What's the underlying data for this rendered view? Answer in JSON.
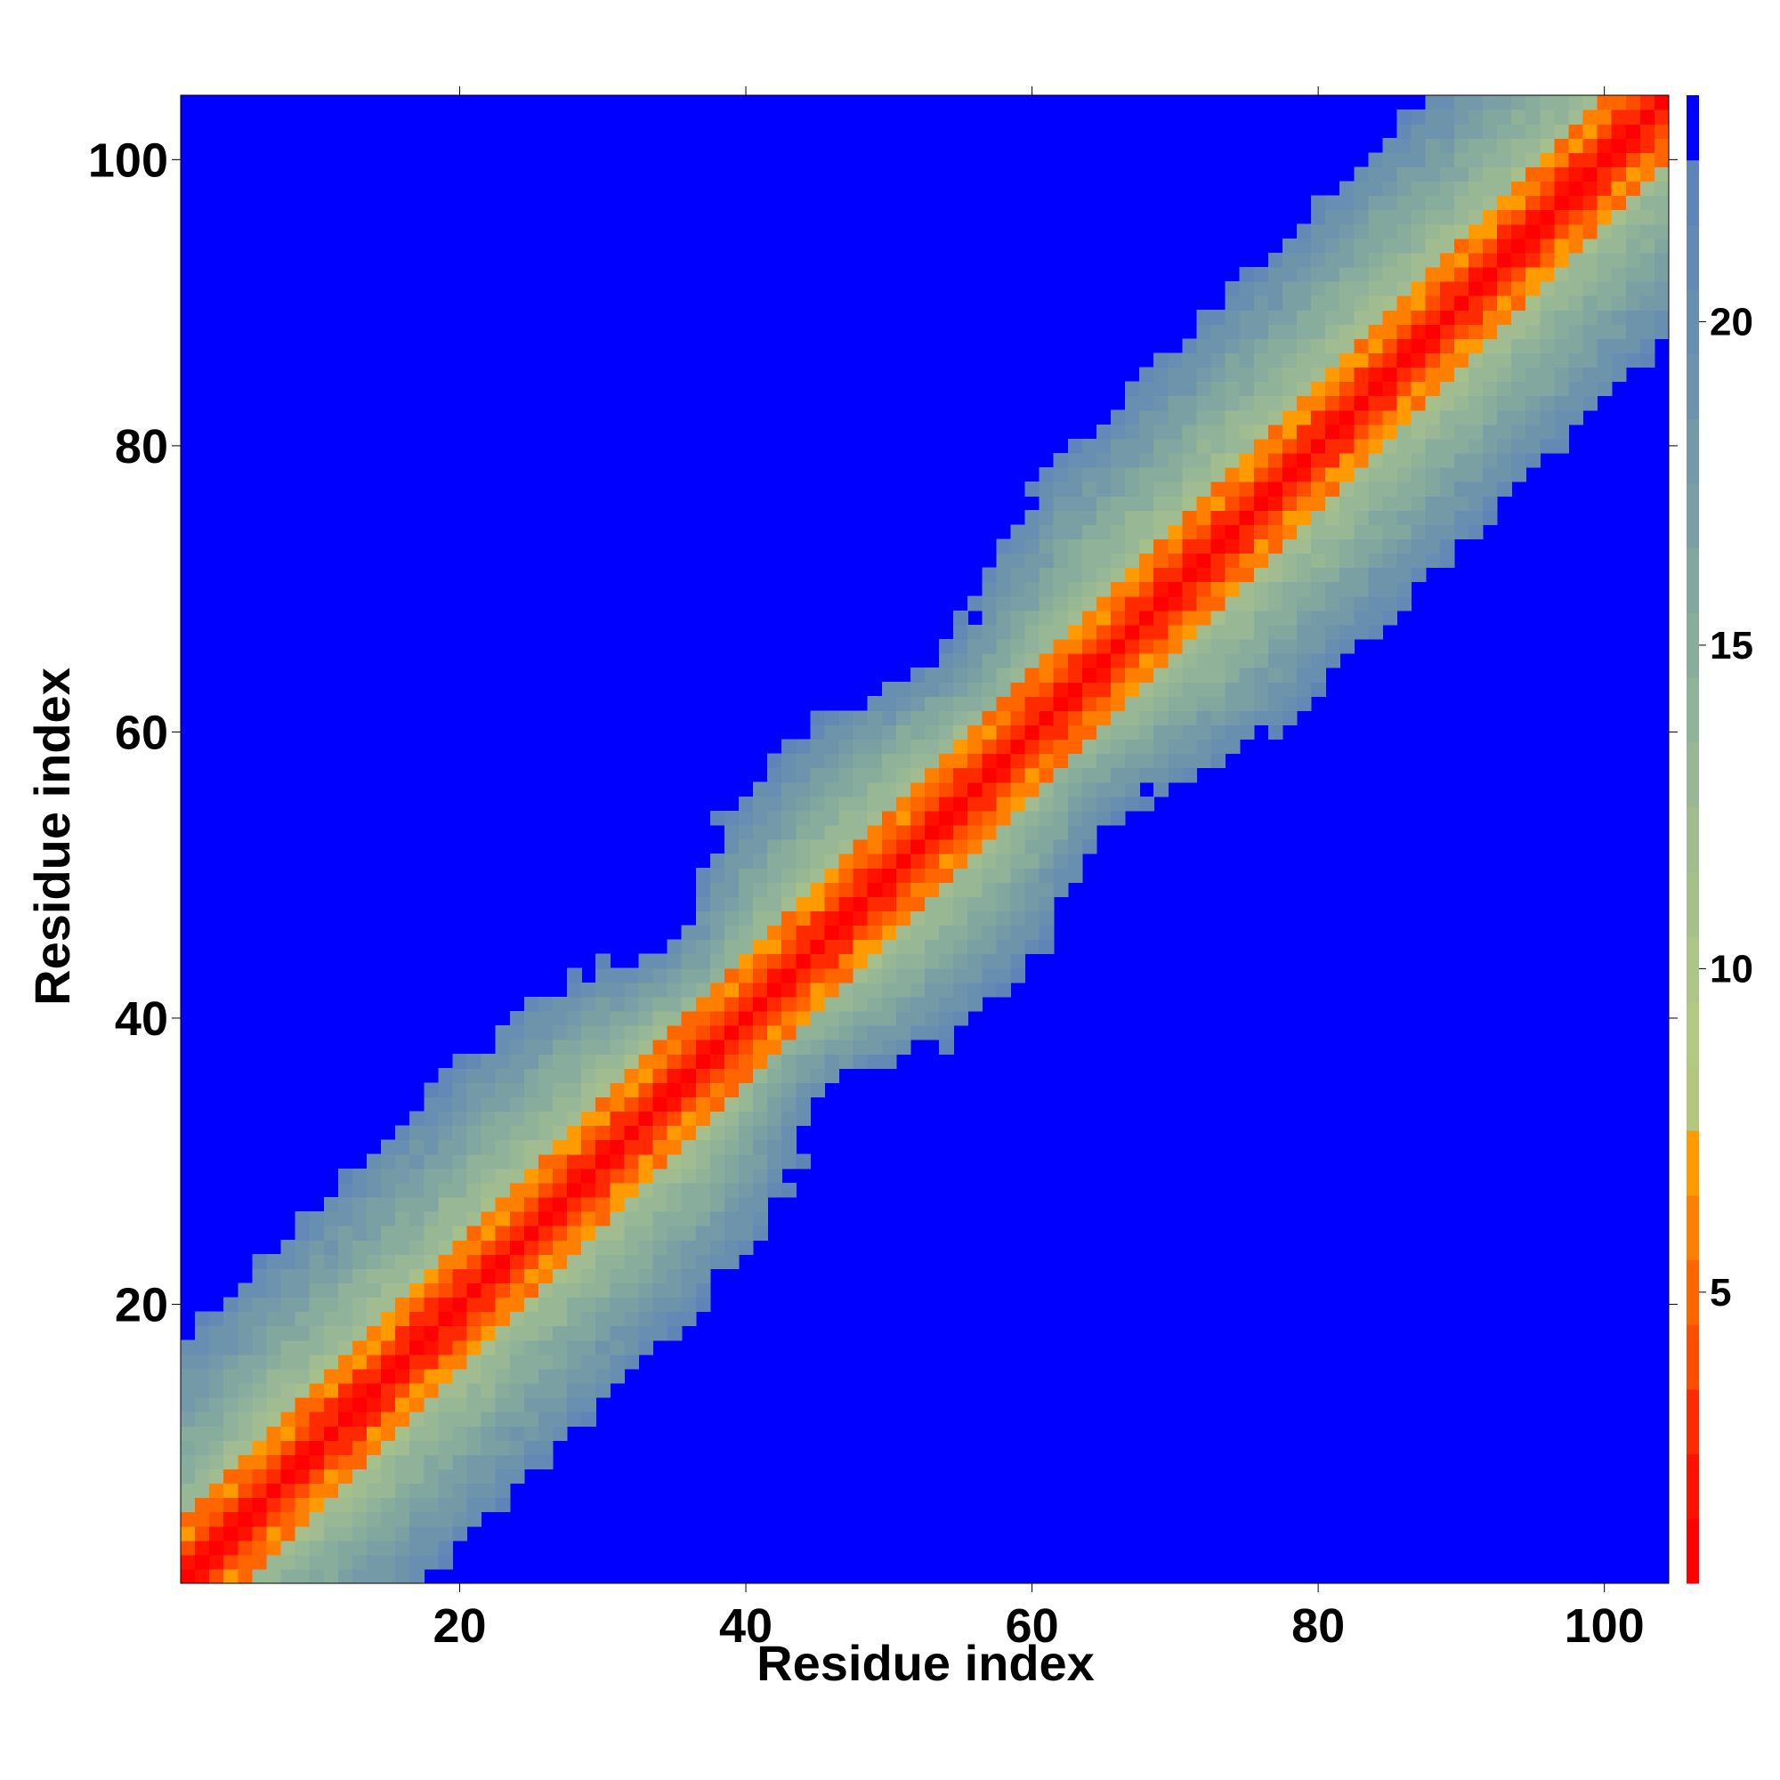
{
  "chart_data": {
    "type": "heatmap",
    "title": "",
    "xlabel": "Residue index",
    "ylabel": "Residue index",
    "n_residues": 104,
    "xlim": [
      0.5,
      104.5
    ],
    "ylim": [
      0.5,
      104.5
    ],
    "x_ticks": [
      20,
      40,
      60,
      80,
      100
    ],
    "y_ticks": [
      20,
      40,
      60,
      80,
      100
    ],
    "grid": false,
    "colorbar": {
      "orientation": "vertical",
      "position": "right",
      "range": [
        0.5,
        23.5
      ],
      "ticks": [
        5,
        10,
        15,
        20
      ],
      "levels": [
        {
          "from": 0.5,
          "to": 1.5,
          "color": "#ff0000"
        },
        {
          "from": 1.5,
          "to": 2.5,
          "color": "#ff1100"
        },
        {
          "from": 2.5,
          "to": 3.5,
          "color": "#ff2a00"
        },
        {
          "from": 3.5,
          "to": 4.5,
          "color": "#ff4d00"
        },
        {
          "from": 4.5,
          "to": 5.5,
          "color": "#ff6600"
        },
        {
          "from": 5.5,
          "to": 6.5,
          "color": "#ff8000"
        },
        {
          "from": 6.5,
          "to": 7.5,
          "color": "#ff9a00"
        },
        {
          "from": 7.5,
          "to": 8.5,
          "color": "#b3c87e"
        },
        {
          "from": 8.5,
          "to": 9.5,
          "color": "#b2c883"
        },
        {
          "from": 9.5,
          "to": 10.5,
          "color": "#adc588"
        },
        {
          "from": 10.5,
          "to": 11.5,
          "color": "#a6c08c"
        },
        {
          "from": 11.5,
          "to": 12.5,
          "color": "#a0bc90"
        },
        {
          "from": 12.5,
          "to": 13.5,
          "color": "#98b895"
        },
        {
          "from": 13.5,
          "to": 14.5,
          "color": "#90b298"
        },
        {
          "from": 14.5,
          "to": 15.5,
          "color": "#89ad9c"
        },
        {
          "from": 15.5,
          "to": 16.5,
          "color": "#82a79f"
        },
        {
          "from": 16.5,
          "to": 17.5,
          "color": "#7ba0a4"
        },
        {
          "from": 17.5,
          "to": 18.5,
          "color": "#749aa8"
        },
        {
          "from": 18.5,
          "to": 19.5,
          "color": "#6e94ac"
        },
        {
          "from": 19.5,
          "to": 20.5,
          "color": "#698fb0"
        },
        {
          "from": 20.5,
          "to": 21.5,
          "color": "#6389b4"
        },
        {
          "from": 21.5,
          "to": 22.5,
          "color": "#5f84b8"
        },
        {
          "from": 22.5,
          "to": 23.5,
          "color": "#0000ff"
        }
      ]
    },
    "background_color": "#0000ff",
    "band_profile": {
      "description": "Symmetric contact/distance map; value depends on |i - j|, band is narrower near residues 37-43 and 59-61 and wider elsewhere",
      "diagonal_value": 1,
      "max_band_offset_narrow": 12,
      "max_band_offset_wide": 18
    }
  }
}
